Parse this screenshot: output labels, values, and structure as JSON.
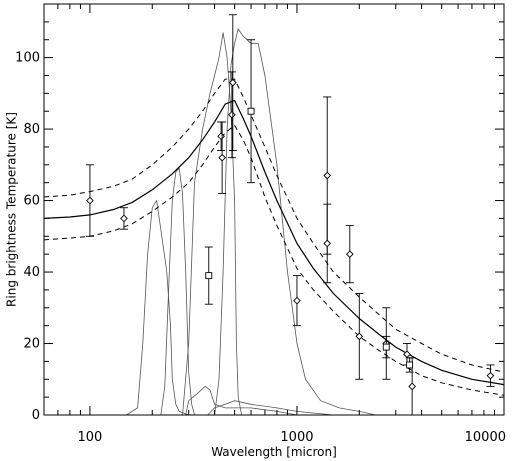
{
  "chart_data": {
    "type": "scatter",
    "title": "",
    "xlabel": "Wavelength [micron]",
    "ylabel": "Ring brightness Temperature [K]",
    "xscale": "log",
    "xlim": [
      60,
      10000
    ],
    "ylim": [
      0,
      115
    ],
    "grid": false,
    "x_ticks": [
      100,
      1000,
      10000
    ],
    "x_tick_labels": [
      "100",
      "1000",
      "10000"
    ],
    "y_ticks": [
      0,
      20,
      40,
      60,
      80,
      100
    ],
    "y_tick_labels": [
      "0",
      "20",
      "40",
      "60",
      "80",
      "100"
    ],
    "series": [
      {
        "marker": "diamond",
        "points": [
          {
            "x": 100,
            "y": 60,
            "err": 10
          },
          {
            "x": 146,
            "y": 55,
            "err": 3
          },
          {
            "x": 430,
            "y": 78,
            "err": 4
          },
          {
            "x": 435,
            "y": 72,
            "err": 10
          },
          {
            "x": 485,
            "y": 84,
            "err": 12
          },
          {
            "x": 490,
            "y": 93,
            "err": 19
          },
          {
            "x": 1000,
            "y": 32,
            "err": 7
          },
          {
            "x": 1400,
            "y": 67,
            "err": 22
          },
          {
            "x": 1400,
            "y": 48,
            "err": 11
          },
          {
            "x": 1800,
            "y": 45,
            "err": 8
          },
          {
            "x": 2000,
            "y": 22,
            "err": 12
          },
          {
            "x": 2700,
            "y": 20,
            "err": 10
          },
          {
            "x": 3400,
            "y": 17,
            "err": 3
          },
          {
            "x": 3600,
            "y": 8,
            "err": 8
          },
          {
            "x": 8600,
            "y": 11,
            "err": 3
          }
        ]
      },
      {
        "marker": "square",
        "points": [
          {
            "x": 375,
            "y": 39,
            "err": 8
          },
          {
            "x": 600,
            "y": 85,
            "err": 20
          },
          {
            "x": 2700,
            "y": 19,
            "err": 3
          },
          {
            "x": 3500,
            "y": 14,
            "err": 2
          }
        ]
      }
    ],
    "model_curve": {
      "style": "solid",
      "points": [
        [
          60,
          55
        ],
        [
          80,
          55.4
        ],
        [
          100,
          56
        ],
        [
          130,
          57.5
        ],
        [
          160,
          59.5
        ],
        [
          200,
          63
        ],
        [
          250,
          67.5
        ],
        [
          300,
          72
        ],
        [
          350,
          77
        ],
        [
          400,
          82
        ],
        [
          450,
          87
        ],
        [
          500,
          88
        ],
        [
          550,
          83
        ],
        [
          600,
          78
        ],
        [
          700,
          68
        ],
        [
          800,
          60
        ],
        [
          1000,
          48
        ],
        [
          1200,
          41
        ],
        [
          1500,
          34
        ],
        [
          2000,
          27
        ],
        [
          2500,
          22.5
        ],
        [
          3000,
          19
        ],
        [
          4000,
          15
        ],
        [
          5000,
          12.5
        ],
        [
          7000,
          10
        ],
        [
          10000,
          8.5
        ]
      ]
    },
    "model_bounds": [
      {
        "style": "dashed",
        "points": [
          [
            60,
            61
          ],
          [
            80,
            61.5
          ],
          [
            100,
            62.5
          ],
          [
            130,
            64
          ],
          [
            160,
            66
          ],
          [
            200,
            70
          ],
          [
            250,
            75
          ],
          [
            300,
            80
          ],
          [
            350,
            85
          ],
          [
            400,
            90
          ],
          [
            450,
            94
          ],
          [
            500,
            94
          ],
          [
            550,
            89
          ],
          [
            600,
            84
          ],
          [
            700,
            75
          ],
          [
            800,
            67
          ],
          [
            1000,
            55
          ],
          [
            1200,
            48
          ],
          [
            1500,
            40
          ],
          [
            2000,
            33
          ],
          [
            2500,
            28
          ],
          [
            3000,
            24
          ],
          [
            4000,
            20
          ],
          [
            5000,
            17
          ],
          [
            7000,
            14
          ],
          [
            10000,
            12
          ]
        ]
      },
      {
        "style": "dashed",
        "points": [
          [
            60,
            49
          ],
          [
            80,
            49.5
          ],
          [
            100,
            50
          ],
          [
            130,
            51.5
          ],
          [
            160,
            53.5
          ],
          [
            200,
            57
          ],
          [
            250,
            61
          ],
          [
            300,
            65
          ],
          [
            350,
            70
          ],
          [
            400,
            75
          ],
          [
            450,
            79
          ],
          [
            500,
            81
          ],
          [
            550,
            77
          ],
          [
            600,
            72
          ],
          [
            700,
            61
          ],
          [
            800,
            53
          ],
          [
            1000,
            41
          ],
          [
            1200,
            35
          ],
          [
            1500,
            29
          ],
          [
            2000,
            22
          ],
          [
            2500,
            18
          ],
          [
            3000,
            15
          ],
          [
            4000,
            11
          ],
          [
            5000,
            9
          ],
          [
            7000,
            7
          ],
          [
            10000,
            5.5
          ]
        ]
      }
    ],
    "bandpass_curves": [
      {
        "points": [
          [
            150,
            0
          ],
          [
            170,
            2
          ],
          [
            180,
            20
          ],
          [
            190,
            45
          ],
          [
            200,
            58
          ],
          [
            210,
            60
          ],
          [
            220,
            52
          ],
          [
            235,
            40
          ],
          [
            245,
            25
          ],
          [
            250,
            10
          ],
          [
            260,
            3
          ],
          [
            270,
            1
          ],
          [
            300,
            0
          ]
        ]
      },
      {
        "points": [
          [
            220,
            0
          ],
          [
            230,
            8
          ],
          [
            240,
            35
          ],
          [
            250,
            60
          ],
          [
            260,
            68
          ],
          [
            270,
            69
          ],
          [
            280,
            62
          ],
          [
            290,
            40
          ],
          [
            300,
            12
          ],
          [
            310,
            3
          ],
          [
            320,
            0
          ]
        ]
      },
      {
        "points": [
          [
            280,
            0
          ],
          [
            300,
            20
          ],
          [
            320,
            65
          ],
          [
            350,
            80
          ],
          [
            380,
            90
          ],
          [
            400,
            95
          ],
          [
            420,
            100
          ],
          [
            440,
            107
          ],
          [
            460,
            100
          ],
          [
            480,
            85
          ],
          [
            500,
            60
          ],
          [
            510,
            20
          ],
          [
            520,
            5
          ],
          [
            540,
            0
          ]
        ]
      },
      {
        "points": [
          [
            400,
            0
          ],
          [
            420,
            10
          ],
          [
            440,
            40
          ],
          [
            460,
            80
          ],
          [
            480,
            98
          ],
          [
            500,
            104
          ],
          [
            520,
            108
          ],
          [
            550,
            106
          ],
          [
            600,
            104
          ],
          [
            650,
            104
          ],
          [
            700,
            95
          ],
          [
            800,
            70
          ],
          [
            900,
            40
          ],
          [
            1000,
            20
          ],
          [
            1100,
            10
          ],
          [
            1300,
            4
          ],
          [
            1600,
            2
          ],
          [
            2000,
            1
          ],
          [
            2400,
            0
          ]
        ]
      },
      {
        "points": [
          [
            290,
            0
          ],
          [
            300,
            4
          ],
          [
            330,
            6
          ],
          [
            360,
            8
          ],
          [
            380,
            7
          ],
          [
            400,
            3
          ],
          [
            450,
            2
          ],
          [
            600,
            2
          ],
          [
            800,
            1
          ],
          [
            1000,
            0
          ]
        ]
      },
      {
        "points": [
          [
            370,
            0
          ],
          [
            400,
            2
          ],
          [
            450,
            3
          ],
          [
            500,
            4
          ],
          [
            600,
            3
          ],
          [
            800,
            2
          ],
          [
            1000,
            1
          ],
          [
            1500,
            0
          ]
        ]
      }
    ]
  }
}
